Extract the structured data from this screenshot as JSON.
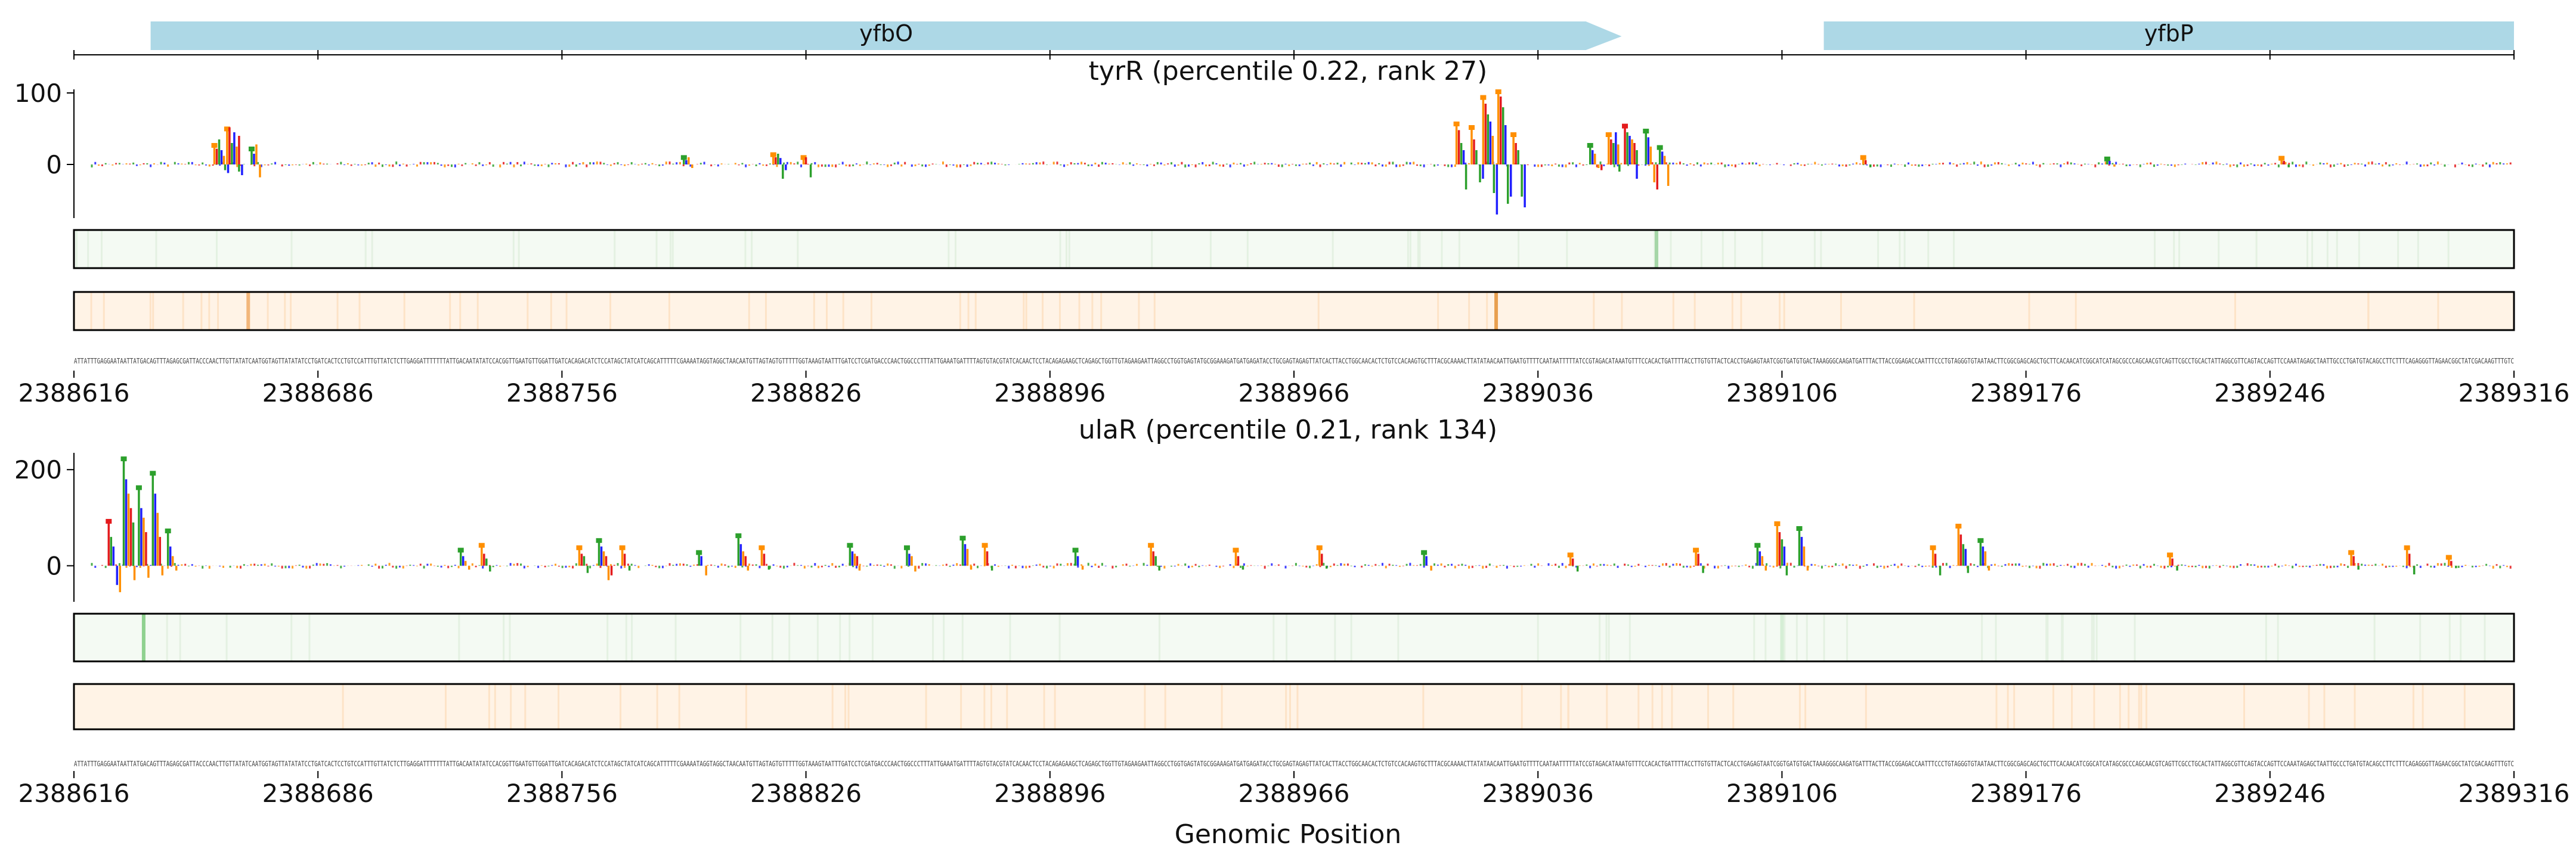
{
  "chart_data": {
    "type": "line",
    "xlabel": "Genomic Position",
    "x_ticks": [
      2388616,
      2388686,
      2388756,
      2388826,
      2388896,
      2388966,
      2389036,
      2389106,
      2389176,
      2389246,
      2389316
    ],
    "x_tick_labels": [
      "2388616",
      "2388686",
      "2388756",
      "2388826",
      "2388896",
      "2388966",
      "2389036",
      "2389106",
      "2389176",
      "2389246",
      "2389316"
    ],
    "xlim": [
      2388616,
      2389316
    ],
    "genes": [
      {
        "name": "yfbO",
        "start": 2388638,
        "end": 2389060,
        "strand": "+"
      },
      {
        "name": "yfbP",
        "start": 2389118,
        "end": 2389316,
        "strand": "+"
      }
    ],
    "sequence": "ATTATTTGAGGAATAATTATGACAGTTTAGAGCGATTACCCAACTTGTTATATCAATGGTAGTTATATATCCTGATCACTCCTGTCCATTTGTTATCTCTTGAGGATTTTTTTATTGACAATATATCCACGGTTGAATGTTGGATTGATCACAGACATCTCCATAGCTATCATCAGCATTTTTCGAAAATAGGTAGGCTAACAATGTTAGTAGTGTTTTTGGTAAAGTAATTTGATCCTCGATGACCCAACTGGCCCTTTATTGAAATGATTTTAGTGTACGTATCACAACTCCTACAGAGAAGCTCAGAGCTGGTTGTAGAAGAATTAGGCCTGGTGAGTATGCGGAAAGATGATGAGATACCTGCGAGTAGAGTTATCACTTACCTGGCAACACTCTGTCCACAAGTGCTTTACGCAAAACTTATATAACAATTGAATGTTTTCAATAATTTTTATCCGTAGACATAAATGTTTCCACACTGATTTTACCTTGTGTTACTCACCTGAGAGTAATCGGTGATGTGACTAAAGGGCAAGATGATTTACTTACCGGAGACCAATTTCCCTGTAGGGTGTAATAACTTCGGCGAGCAGCTGCTTCACAACATCGGCATCATAGCGCCCAGCAACGTCAGTTCGCCTGCACTATTAGGCGTTCAGTACCAGTTCCAAATAGAGCTAATTGCCCTGATGTACAGCCTTCTTTCAGAGGGTTAGAACGGCTATCGACAAGTTTGTC",
    "series": [
      {
        "name": "tyrR",
        "title": "tyrR (percentile 0.22, rank 27)",
        "ylim": [
          -75,
          105
        ],
        "yticks": [
          0,
          100
        ],
        "peaks": [
          {
            "x": 2388658,
            "values": [
              25,
              22,
              35,
              20,
              12
            ],
            "neg": [
              -8,
              -12
            ]
          },
          {
            "x": 2388662,
            "values": [
              48,
              52,
              30,
              45,
              25,
              40
            ],
            "neg": [
              -10,
              -15
            ]
          },
          {
            "x": 2388668,
            "values": [
              20,
              15,
              28
            ],
            "neg": [
              -18
            ]
          },
          {
            "x": 2388792,
            "values": [
              8,
              6,
              10
            ],
            "neg": [
              -5
            ]
          },
          {
            "x": 2388818,
            "values": [
              12,
              10,
              15,
              9
            ],
            "neg": [
              -20,
              -8
            ]
          },
          {
            "x": 2388826,
            "values": [
              8,
              10
            ],
            "neg": [
              -18
            ]
          },
          {
            "x": 2389014,
            "values": [
              55,
              48,
              30,
              20
            ],
            "neg": [
              -35
            ]
          },
          {
            "x": 2389018,
            "values": [
              50,
              35,
              20
            ],
            "neg": [
              -25,
              -20
            ]
          },
          {
            "x": 2389022,
            "values": [
              92,
              85,
              70,
              60,
              40
            ],
            "neg": [
              -40,
              -70
            ]
          },
          {
            "x": 2389026,
            "values": [
              100,
              95,
              80,
              55
            ],
            "neg": [
              -55,
              -45
            ]
          },
          {
            "x": 2389030,
            "values": [
              40,
              30,
              20
            ],
            "neg": [
              -45,
              -60
            ]
          },
          {
            "x": 2389052,
            "values": [
              25,
              20,
              15
            ],
            "neg": [
              -5,
              -8
            ]
          },
          {
            "x": 2389058,
            "values": [
              40,
              35,
              30,
              45,
              28
            ],
            "neg": [
              -10
            ]
          },
          {
            "x": 2389063,
            "values": [
              52,
              45,
              40,
              35,
              30,
              20
            ],
            "neg": [
              -20
            ]
          },
          {
            "x": 2389068,
            "values": [
              45,
              38,
              25
            ],
            "neg": [
              -25,
              -35
            ]
          },
          {
            "x": 2389072,
            "values": [
              22,
              18,
              12
            ],
            "neg": [
              -30
            ]
          },
          {
            "x": 2389130,
            "values": [
              8,
              6
            ],
            "neg": [
              -4
            ]
          },
          {
            "x": 2389200,
            "values": [
              6,
              5
            ],
            "neg": [
              -3
            ]
          },
          {
            "x": 2389250,
            "values": [
              7,
              5
            ],
            "neg": [
              -4
            ]
          }
        ],
        "track1_highlights": [
          {
            "x": 2389070,
            "color": "#a5d6a7"
          }
        ],
        "track2_highlights": [
          {
            "x": 2388666,
            "color": "#f2b67a"
          },
          {
            "x": 2389024,
            "color": "#e8a050"
          }
        ]
      },
      {
        "name": "ulaR",
        "title": "ulaR (percentile 0.21, rank 134)",
        "ylim": [
          -75,
          235
        ],
        "yticks": [
          0,
          200
        ],
        "peaks": [
          {
            "x": 2388627,
            "values": [
              90,
              60,
              40
            ],
            "neg": [
              -40,
              -55
            ]
          },
          {
            "x": 2388632,
            "values": [
              220,
              180,
              150,
              120,
              90
            ],
            "neg": [
              -30
            ]
          },
          {
            "x": 2388636,
            "values": [
              160,
              120,
              100,
              70
            ],
            "neg": [
              -25
            ]
          },
          {
            "x": 2388640,
            "values": [
              190,
              150,
              110,
              60
            ],
            "neg": [
              -20
            ]
          },
          {
            "x": 2388644,
            "values": [
              70,
              40,
              20
            ],
            "neg": [
              -10
            ]
          },
          {
            "x": 2388728,
            "values": [
              30,
              20,
              10
            ],
            "neg": [
              -8
            ]
          },
          {
            "x": 2388734,
            "values": [
              40,
              25,
              15
            ],
            "neg": [
              -12
            ]
          },
          {
            "x": 2388762,
            "values": [
              35,
              25,
              20
            ],
            "neg": [
              -15
            ]
          },
          {
            "x": 2388768,
            "values": [
              50,
              40,
              30,
              20
            ],
            "neg": [
              -30,
              -20
            ]
          },
          {
            "x": 2388774,
            "values": [
              35,
              25
            ],
            "neg": [
              -10
            ]
          },
          {
            "x": 2388796,
            "values": [
              25,
              20
            ],
            "neg": [
              -20
            ]
          },
          {
            "x": 2388808,
            "values": [
              60,
              45,
              30,
              20
            ],
            "neg": [
              -10
            ]
          },
          {
            "x": 2388814,
            "values": [
              35,
              25
            ],
            "neg": [
              -8
            ]
          },
          {
            "x": 2388840,
            "values": [
              40,
              30,
              25,
              20
            ],
            "neg": [
              -10
            ]
          },
          {
            "x": 2388856,
            "values": [
              35,
              25,
              20
            ],
            "neg": [
              -12
            ]
          },
          {
            "x": 2388872,
            "values": [
              55,
              45,
              35
            ],
            "neg": [
              -8
            ]
          },
          {
            "x": 2388878,
            "values": [
              40,
              30
            ],
            "neg": [
              -10
            ]
          },
          {
            "x": 2388904,
            "values": [
              30,
              20
            ],
            "neg": [
              -8
            ]
          },
          {
            "x": 2388926,
            "values": [
              40,
              30,
              20
            ],
            "neg": [
              -10
            ]
          },
          {
            "x": 2388950,
            "values": [
              30,
              20
            ],
            "neg": [
              -8
            ]
          },
          {
            "x": 2388974,
            "values": [
              35,
              25
            ],
            "neg": [
              -6
            ]
          },
          {
            "x": 2389004,
            "values": [
              25,
              20
            ],
            "neg": [
              -10
            ]
          },
          {
            "x": 2389046,
            "values": [
              20,
              15
            ],
            "neg": [
              -12
            ]
          },
          {
            "x": 2389082,
            "values": [
              30,
              25
            ],
            "neg": [
              -15
            ]
          },
          {
            "x": 2389100,
            "values": [
              40,
              30,
              20
            ],
            "neg": [
              -10
            ]
          },
          {
            "x": 2389106,
            "values": [
              85,
              70,
              55,
              40
            ],
            "neg": [
              -20
            ]
          },
          {
            "x": 2389112,
            "values": [
              75,
              60,
              40
            ],
            "neg": [
              -10
            ]
          },
          {
            "x": 2389150,
            "values": [
              35,
              25
            ],
            "neg": [
              -20
            ]
          },
          {
            "x": 2389158,
            "values": [
              80,
              65,
              45,
              35
            ],
            "neg": [
              -15
            ]
          },
          {
            "x": 2389164,
            "values": [
              50,
              40,
              30
            ],
            "neg": [
              -10
            ]
          },
          {
            "x": 2389218,
            "values": [
              20,
              15
            ],
            "neg": [
              -10
            ]
          },
          {
            "x": 2389270,
            "values": [
              25,
              20
            ],
            "neg": [
              -8
            ]
          },
          {
            "x": 2389286,
            "values": [
              35,
              25
            ],
            "neg": [
              -18
            ]
          },
          {
            "x": 2389298,
            "values": [
              15,
              10
            ],
            "neg": [
              -5
            ]
          }
        ],
        "track1_highlights": [
          {
            "x": 2388636,
            "color": "#8fd18f"
          },
          {
            "x": 2389106,
            "color": "#d5eed5"
          }
        ],
        "track2_highlights": []
      }
    ]
  }
}
